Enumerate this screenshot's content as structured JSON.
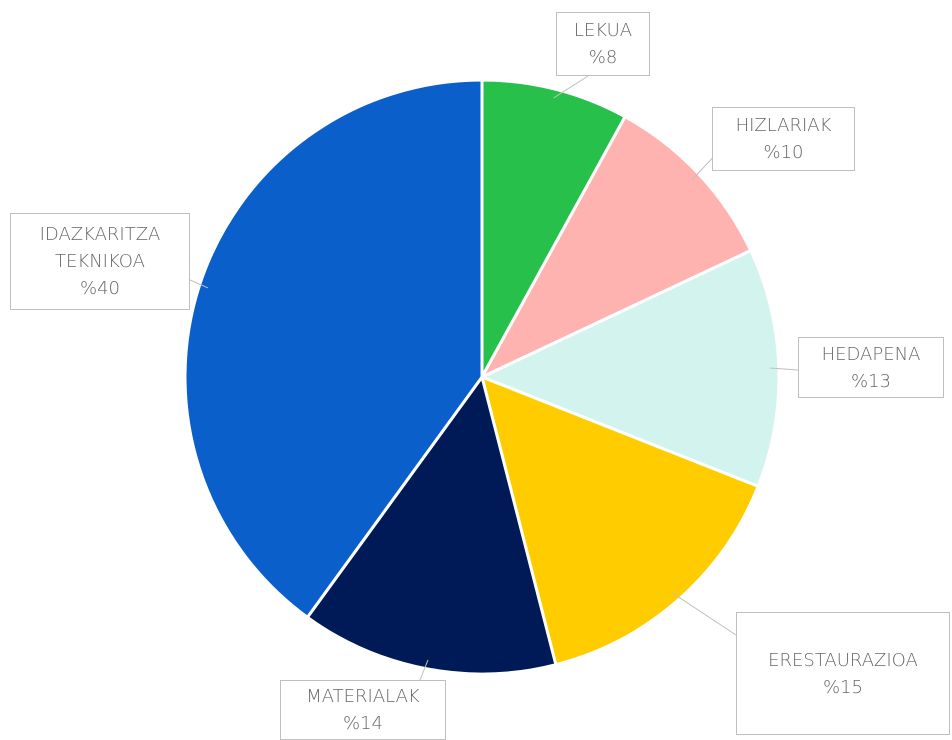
{
  "chart_data": {
    "type": "pie",
    "categories": [
      "LEKUA",
      "HIZLARIAK",
      "HEDAPENA",
      "ERESTAURAZIOA",
      "MATERIALAK",
      "IDAZKARITZA TEKNIKOA"
    ],
    "values": [
      8,
      10,
      13,
      15,
      14,
      40
    ],
    "value_labels": [
      "%8",
      "%10",
      "%13",
      "%15",
      "%14",
      "%40"
    ],
    "colors": [
      "#27c04a",
      "#ffb3b0",
      "#d3f4ee",
      "#ffcc00",
      "#001a57",
      "#0b5fcb"
    ]
  }
}
